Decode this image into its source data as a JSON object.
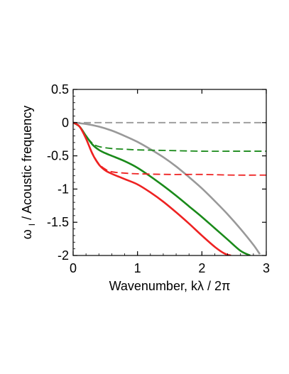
{
  "chart_data": {
    "type": "line",
    "title": "",
    "xlabel": "Wavenumber, kλ / 2π",
    "ylabel_main": "ω",
    "ylabel_sub": "I",
    "ylabel_rest": " / Acoustic frequency",
    "xlim": [
      0,
      3
    ],
    "ylim": [
      -2,
      0.5
    ],
    "x_ticks": [
      {
        "value": 0,
        "label": "0"
      },
      {
        "value": 1,
        "label": "1"
      },
      {
        "value": 2,
        "label": "2"
      },
      {
        "value": 3,
        "label": "3"
      }
    ],
    "y_ticks": [
      {
        "value": 0.5,
        "label": "0.5"
      },
      {
        "value": 0,
        "label": "0"
      },
      {
        "value": -0.5,
        "label": "-0.5"
      },
      {
        "value": -1,
        "label": "-1"
      },
      {
        "value": -1.5,
        "label": "-1.5"
      },
      {
        "value": -2,
        "label": "-2"
      }
    ],
    "grid": false,
    "legend": "none",
    "series": [
      {
        "color": "#999999",
        "style": "dashed",
        "x": [
          0,
          3
        ],
        "y": [
          0,
          0
        ]
      },
      {
        "color": "#999999",
        "style": "solid",
        "x": [
          0,
          0.2,
          0.4,
          0.6,
          0.8,
          1.0,
          1.2,
          1.4,
          1.6,
          1.8,
          2.0,
          2.2,
          2.4,
          2.6,
          2.8,
          2.9
        ],
        "y": [
          0,
          -0.02,
          -0.06,
          -0.12,
          -0.2,
          -0.29,
          -0.4,
          -0.52,
          -0.66,
          -0.82,
          -0.99,
          -1.18,
          -1.38,
          -1.6,
          -1.84,
          -1.98
        ]
      },
      {
        "color": "#1a8a1a",
        "style": "dashed",
        "x": [
          0,
          0.1,
          0.2,
          0.3,
          0.4,
          0.6,
          0.8,
          1.0,
          1.5,
          2.0,
          2.5,
          3.0
        ],
        "y": [
          0,
          -0.06,
          -0.2,
          -0.31,
          -0.36,
          -0.39,
          -0.4,
          -0.41,
          -0.42,
          -0.43,
          -0.43,
          -0.43
        ]
      },
      {
        "color": "#1a8a1a",
        "style": "solid",
        "x": [
          0,
          0.1,
          0.2,
          0.3,
          0.4,
          0.5,
          0.6,
          0.8,
          1.0,
          1.2,
          1.4,
          1.6,
          1.8,
          2.0,
          2.2,
          2.4,
          2.6,
          2.75
        ],
        "y": [
          0,
          -0.06,
          -0.2,
          -0.33,
          -0.41,
          -0.46,
          -0.5,
          -0.58,
          -0.68,
          -0.81,
          -0.95,
          -1.1,
          -1.26,
          -1.42,
          -1.59,
          -1.76,
          -1.93,
          -2.0
        ]
      },
      {
        "color": "#ee2222",
        "style": "dashed",
        "x": [
          0,
          0.1,
          0.2,
          0.3,
          0.4,
          0.5,
          0.6,
          0.8,
          1.0,
          1.5,
          2.0,
          2.5,
          3.0
        ],
        "y": [
          0,
          -0.06,
          -0.24,
          -0.46,
          -0.62,
          -0.7,
          -0.74,
          -0.76,
          -0.77,
          -0.78,
          -0.78,
          -0.79,
          -0.79
        ]
      },
      {
        "color": "#ee2222",
        "style": "solid",
        "x": [
          0,
          0.1,
          0.2,
          0.3,
          0.4,
          0.5,
          0.6,
          0.7,
          0.8,
          1.0,
          1.2,
          1.4,
          1.6,
          1.8,
          2.0,
          2.2,
          2.35,
          2.45
        ],
        "y": [
          0,
          -0.06,
          -0.24,
          -0.47,
          -0.63,
          -0.72,
          -0.77,
          -0.81,
          -0.85,
          -0.93,
          -1.05,
          -1.19,
          -1.35,
          -1.52,
          -1.7,
          -1.87,
          -1.97,
          -2.0
        ]
      }
    ]
  }
}
